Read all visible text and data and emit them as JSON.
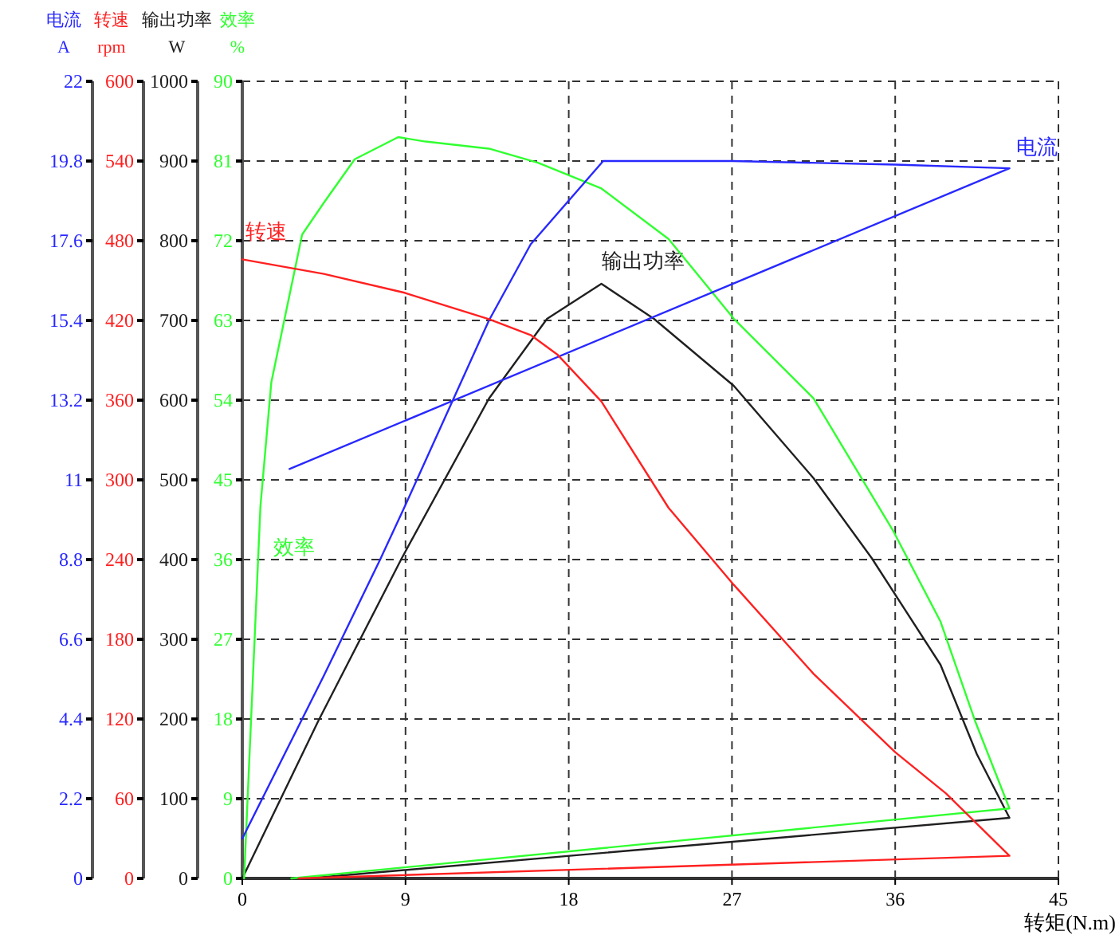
{
  "chart_data": [
    {
      "type": "line",
      "xlabel": "转矩(N.m)",
      "ylabel": "输出功率\nW",
      "y2label": "效率\n%",
      "xlim": [
        0,
        45
      ],
      "xticks": [
        0,
        9,
        18,
        27,
        36,
        45
      ],
      "ylim": [
        0,
        1000
      ],
      "yticks": [
        0,
        100,
        200,
        300,
        400,
        500,
        600,
        700,
        800,
        900,
        1000
      ],
      "y2lim": [
        0,
        90
      ],
      "y2ticks": [
        0,
        9,
        18,
        27,
        36,
        45,
        54,
        63,
        72,
        81,
        90
      ],
      "grid": true,
      "legend": false,
      "line_style": "solid",
      "marker": "none",
      "series": [
        {
          "name": "输出功率",
          "color": "#202020",
          "x": [
            0,
            4.2,
            8.8,
            13.6,
            16.8,
            19.8,
            22.7,
            27.1,
            31.5,
            34.7,
            38.5,
            40.5,
            42.3,
            3.6
          ],
          "values": [
            0,
            198,
            402,
            602,
            702,
            746,
            702,
            618,
            502,
            402,
            268,
            156,
            76,
            0
          ]
        },
        {
          "name": "效率",
          "color": "#30ff30",
          "axis": "y2",
          "x": [
            0.1,
            1.0,
            1.6,
            2.7,
            3.3,
            4.5,
            6.2,
            8.6,
            10.1,
            13.6,
            16.3,
            19.8,
            23.5,
            27.1,
            31.5,
            35.9,
            38.5,
            40.4,
            42.3,
            2.7
          ],
          "values": [
            0,
            42,
            56,
            66.8,
            72.7,
            76.3,
            81.2,
            83.7,
            83.2,
            82.4,
            80.8,
            77.9,
            72.2,
            63.2,
            54.2,
            39.2,
            29,
            17.8,
            7.9,
            0
          ]
        }
      ]
    },
    {
      "type": "line",
      "ylabel": "电流\nA",
      "y2label": "转速\nrpm",
      "xlim": [
        0,
        45
      ],
      "tick_labels": "y",
      "ylim": [
        0,
        22
      ],
      "yticks": [
        0,
        2.2,
        4.4,
        6.6,
        8.8,
        11,
        13.2,
        15.4,
        17.6,
        19.8,
        22
      ],
      "y2lim": [
        0,
        600
      ],
      "y2ticks": [
        0,
        60,
        120,
        180,
        240,
        300,
        360,
        420,
        480,
        540,
        600
      ],
      "legend": false,
      "line_style": "solid",
      "marker": "none",
      "series": [
        {
          "name": "电流",
          "color": "#2828ff",
          "x": [
            0,
            4.5,
            7.6,
            8.9,
            13.6,
            15.9,
            19.9,
            27,
            36,
            42.3,
            2.6
          ],
          "values": [
            1.1,
            5.6,
            8.8,
            10.2,
            15.4,
            17.5,
            19.8,
            19.8,
            19.7,
            19.6,
            11.3
          ]
        },
        {
          "name": "转速",
          "color": "#ff2020",
          "axis": "y2",
          "x": [
            0,
            4.5,
            8.9,
            13.6,
            15.9,
            17.4,
            19.8,
            23.5,
            27.1,
            31.5,
            36,
            38.8,
            42.3,
            3.1
          ],
          "values": [
            466,
            455,
            441,
            421,
            409,
            394,
            359,
            279,
            221,
            154,
            95,
            64,
            17,
            0
          ]
        }
      ]
    }
  ]
}
